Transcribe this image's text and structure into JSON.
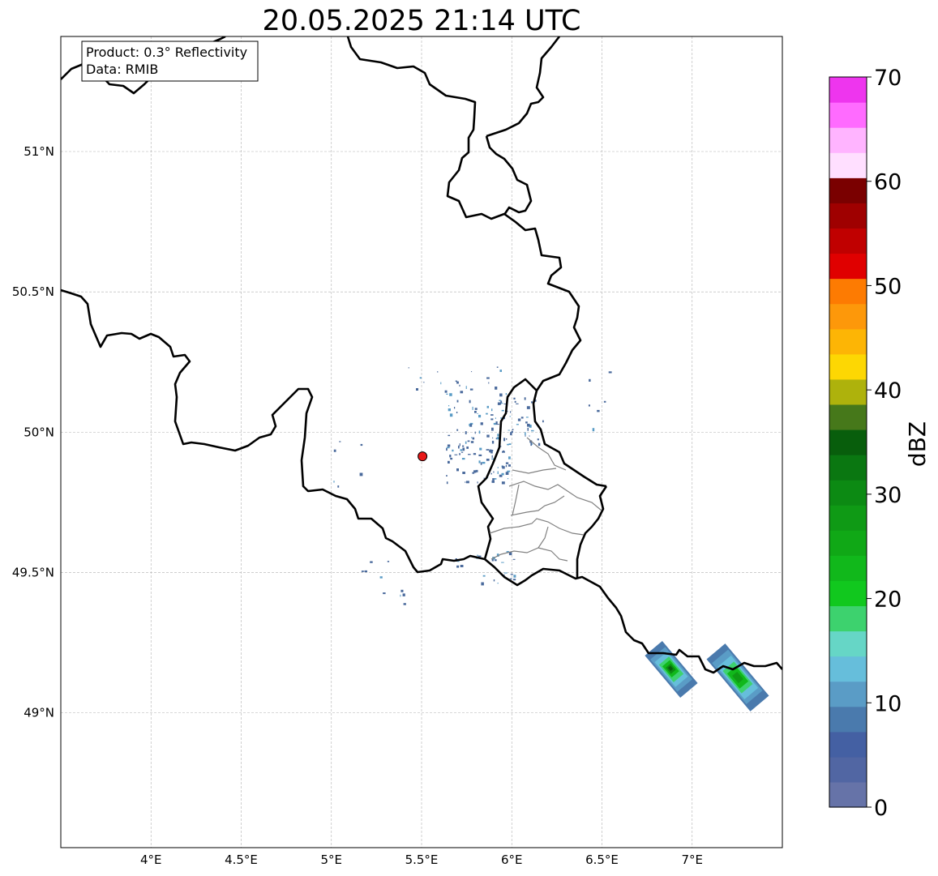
{
  "title": "20.05.2025 21:14 UTC",
  "info_box": {
    "product": "Product: 0.3° Reflectivity",
    "data": "Data: RMIB"
  },
  "axes": {
    "lon_ticks": [
      {
        "value": 4.0,
        "label": "4°E"
      },
      {
        "value": 4.5,
        "label": "4.5°E"
      },
      {
        "value": 5.0,
        "label": "5°E"
      },
      {
        "value": 5.5,
        "label": "5.5°E"
      },
      {
        "value": 6.0,
        "label": "6°E"
      },
      {
        "value": 6.5,
        "label": "6.5°E"
      },
      {
        "value": 7.0,
        "label": "7°E"
      }
    ],
    "lat_ticks": [
      {
        "value": 51.0,
        "label": "51°N"
      },
      {
        "value": 50.5,
        "label": "50.5°N"
      },
      {
        "value": 50.0,
        "label": "50°N"
      },
      {
        "value": 49.5,
        "label": "49.5°N"
      },
      {
        "value": 49.0,
        "label": "49°N"
      }
    ],
    "lon_range": [
      3.5,
      7.5
    ],
    "lat_range": [
      48.52,
      51.41
    ],
    "grid": true
  },
  "radar_site": {
    "lon": 5.505,
    "lat": 49.914,
    "color": "#e81818"
  },
  "colorbar": {
    "label": "dBZ",
    "range": [
      0,
      70
    ],
    "ticks": [
      {
        "value": 0,
        "label": "0"
      },
      {
        "value": 10,
        "label": "10"
      },
      {
        "value": 20,
        "label": "20"
      },
      {
        "value": 30,
        "label": "30"
      },
      {
        "value": 40,
        "label": "40"
      },
      {
        "value": 50,
        "label": "50"
      },
      {
        "value": 60,
        "label": "60"
      },
      {
        "value": 70,
        "label": "70"
      }
    ],
    "colors": [
      "#6673a8",
      "#5166a3",
      "#4460a3",
      "#4a7aad",
      "#5a9cc6",
      "#66bedb",
      "#66d6c6",
      "#3dd26e",
      "#11c81e",
      "#11b81b",
      "#10a816",
      "#0f9a15",
      "#0c8a13",
      "#0a7711",
      "#085e0c",
      "#46781a",
      "#aeb20c",
      "#fdd703",
      "#fdb505",
      "#fd980a",
      "#fd7b02",
      "#e00000",
      "#c00000",
      "#9f0000",
      "#7a0000",
      "#ffdfff",
      "#ffb4ff",
      "#ff6bff",
      "#ee35ee"
    ]
  }
}
